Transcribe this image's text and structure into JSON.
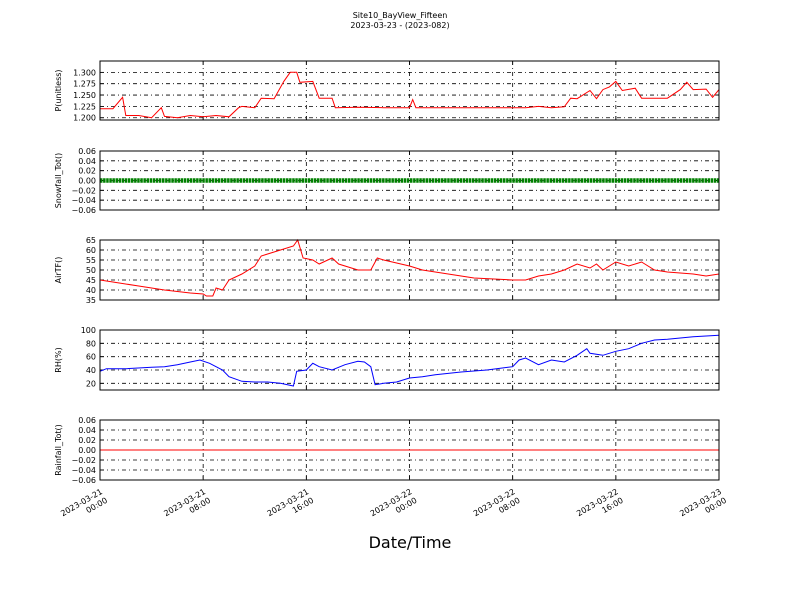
{
  "figure": {
    "title": "Site10_BayView_Fifteen",
    "subtitle": "2023-03-23 - (2023-082)",
    "xlabel": "Date/Time"
  },
  "colors": {
    "red": "#ff0000",
    "green": "#008000",
    "blue": "#0000ff"
  },
  "chart_data": [
    {
      "type": "line",
      "ylabel": "P(unitless)",
      "ylim": [
        1.195,
        1.325
      ],
      "yticks": [
        1.2,
        1.225,
        1.25,
        1.275,
        1.3
      ],
      "ytick_labels": [
        "1.200",
        "1.225",
        "1.250",
        "1.275",
        "1.300"
      ],
      "xlim": [
        "2023-03-21 00:00",
        "2023-03-23 00:00"
      ],
      "grid": true,
      "series": [
        {
          "color": "#ff0000",
          "marker": "none",
          "points": [
            [
              "2023-03-21 00:00",
              1.22
            ],
            [
              "2023-03-21 01:00",
              1.22
            ],
            [
              "2023-03-21 01:45",
              1.245
            ],
            [
              "2023-03-21 02:00",
              1.205
            ],
            [
              "2023-03-21 03:00",
              1.205
            ],
            [
              "2023-03-21 04:00",
              1.2
            ],
            [
              "2023-03-21 04:45",
              1.222
            ],
            [
              "2023-03-21 05:00",
              1.203
            ],
            [
              "2023-03-21 06:00",
              1.2
            ],
            [
              "2023-03-21 07:00",
              1.205
            ],
            [
              "2023-03-21 08:00",
              1.202
            ],
            [
              "2023-03-21 09:00",
              1.205
            ],
            [
              "2023-03-21 10:00",
              1.202
            ],
            [
              "2023-03-21 10:45",
              1.222
            ],
            [
              "2023-03-21 11:00",
              1.225
            ],
            [
              "2023-03-21 12:00",
              1.222
            ],
            [
              "2023-03-21 12:30",
              1.243
            ],
            [
              "2023-03-21 13:30",
              1.242
            ],
            [
              "2023-03-21 14:15",
              1.28
            ],
            [
              "2023-03-21 14:45",
              1.3
            ],
            [
              "2023-03-21 15:15",
              1.3
            ],
            [
              "2023-03-21 15:30",
              1.278
            ],
            [
              "2023-03-21 16:30",
              1.28
            ],
            [
              "2023-03-21 17:00",
              1.243
            ],
            [
              "2023-03-21 18:00",
              1.243
            ],
            [
              "2023-03-21 18:15",
              1.222
            ],
            [
              "2023-03-21 20:00",
              1.223
            ],
            [
              "2023-03-21 22:00",
              1.222
            ],
            [
              "2023-03-22 00:00",
              1.222
            ],
            [
              "2023-03-22 00:15",
              1.24
            ],
            [
              "2023-03-22 00:30",
              1.222
            ],
            [
              "2023-03-22 04:00",
              1.222
            ],
            [
              "2023-03-22 08:00",
              1.222
            ],
            [
              "2023-03-22 09:00",
              1.222
            ],
            [
              "2023-03-22 10:00",
              1.225
            ],
            [
              "2023-03-22 11:00",
              1.222
            ],
            [
              "2023-03-22 12:00",
              1.224
            ],
            [
              "2023-03-22 12:30",
              1.243
            ],
            [
              "2023-03-22 13:00",
              1.242
            ],
            [
              "2023-03-22 14:00",
              1.26
            ],
            [
              "2023-03-22 14:30",
              1.242
            ],
            [
              "2023-03-22 15:00",
              1.262
            ],
            [
              "2023-03-22 15:30",
              1.268
            ],
            [
              "2023-03-22 16:00",
              1.28
            ],
            [
              "2023-03-22 16:30",
              1.26
            ],
            [
              "2023-03-22 17:30",
              1.265
            ],
            [
              "2023-03-22 18:00",
              1.243
            ],
            [
              "2023-03-22 19:00",
              1.243
            ],
            [
              "2023-03-22 20:00",
              1.243
            ],
            [
              "2023-03-22 21:00",
              1.262
            ],
            [
              "2023-03-22 21:30",
              1.278
            ],
            [
              "2023-03-22 22:00",
              1.262
            ],
            [
              "2023-03-22 23:00",
              1.263
            ],
            [
              "2023-03-22 23:30",
              1.245
            ],
            [
              "2023-03-23 00:00",
              1.262
            ]
          ]
        }
      ]
    },
    {
      "type": "line",
      "ylabel": "Snowfall_Tot()",
      "ylim": [
        -0.06,
        0.06
      ],
      "yticks": [
        -0.06,
        -0.04,
        -0.02,
        0.0,
        0.02,
        0.04,
        0.06
      ],
      "ytick_labels": [
        "−0.06",
        "−0.04",
        "−0.02",
        "0.00",
        "0.02",
        "0.04",
        "0.06"
      ],
      "xlim": [
        "2023-03-21 00:00",
        "2023-03-23 00:00"
      ],
      "grid": true,
      "series": [
        {
          "color": "#008000",
          "marker": "dot",
          "points": [
            [
              "2023-03-21 00:00",
              0.0
            ],
            [
              "2023-03-23 00:00",
              0.0
            ]
          ]
        }
      ]
    },
    {
      "type": "line",
      "ylabel": "AirTF()",
      "ylim": [
        35,
        65
      ],
      "yticks": [
        35,
        40,
        45,
        50,
        55,
        60,
        65
      ],
      "ytick_labels": [
        "35",
        "40",
        "45",
        "50",
        "55",
        "60",
        "65"
      ],
      "xlim": [
        "2023-03-21 00:00",
        "2023-03-23 00:00"
      ],
      "grid": true,
      "series": [
        {
          "color": "#ff0000",
          "marker": "none",
          "points": [
            [
              "2023-03-21 00:00",
              45
            ],
            [
              "2023-03-21 01:00",
              44
            ],
            [
              "2023-03-21 03:00",
              42
            ],
            [
              "2023-03-21 05:00",
              40
            ],
            [
              "2023-03-21 07:00",
              38.5
            ],
            [
              "2023-03-21 08:00",
              38
            ],
            [
              "2023-03-21 08:15",
              37
            ],
            [
              "2023-03-21 08:45",
              37
            ],
            [
              "2023-03-21 09:00",
              41
            ],
            [
              "2023-03-21 09:30",
              40
            ],
            [
              "2023-03-21 10:00",
              45
            ],
            [
              "2023-03-21 11:00",
              48
            ],
            [
              "2023-03-21 12:00",
              52
            ],
            [
              "2023-03-21 12:30",
              57
            ],
            [
              "2023-03-21 13:00",
              58
            ],
            [
              "2023-03-21 14:00",
              60
            ],
            [
              "2023-03-21 15:00",
              62
            ],
            [
              "2023-03-21 15:20",
              65
            ],
            [
              "2023-03-21 15:45",
              56
            ],
            [
              "2023-03-21 16:30",
              55
            ],
            [
              "2023-03-21 17:00",
              53
            ],
            [
              "2023-03-21 18:00",
              56
            ],
            [
              "2023-03-21 18:30",
              53
            ],
            [
              "2023-03-21 20:00",
              50
            ],
            [
              "2023-03-21 21:00",
              50
            ],
            [
              "2023-03-21 21:30",
              56
            ],
            [
              "2023-03-21 22:00",
              55
            ],
            [
              "2023-03-22 00:00",
              52
            ],
            [
              "2023-03-22 01:00",
              50
            ],
            [
              "2023-03-22 03:00",
              48
            ],
            [
              "2023-03-22 05:00",
              46
            ],
            [
              "2023-03-22 08:00",
              45
            ],
            [
              "2023-03-22 09:00",
              45
            ],
            [
              "2023-03-22 10:00",
              47
            ],
            [
              "2023-03-22 11:00",
              48
            ],
            [
              "2023-03-22 12:00",
              50
            ],
            [
              "2023-03-22 13:00",
              53
            ],
            [
              "2023-03-22 14:00",
              51
            ],
            [
              "2023-03-22 14:30",
              53
            ],
            [
              "2023-03-22 15:00",
              50
            ],
            [
              "2023-03-22 16:00",
              54
            ],
            [
              "2023-03-22 17:00",
              52
            ],
            [
              "2023-03-22 18:00",
              54
            ],
            [
              "2023-03-22 19:00",
              50
            ],
            [
              "2023-03-22 20:00",
              49
            ],
            [
              "2023-03-22 22:00",
              48
            ],
            [
              "2023-03-22 23:00",
              47
            ],
            [
              "2023-03-23 00:00",
              48
            ]
          ]
        }
      ]
    },
    {
      "type": "line",
      "ylabel": "RH(%)",
      "ylim": [
        10,
        100
      ],
      "yticks": [
        20,
        40,
        60,
        80,
        100
      ],
      "ytick_labels": [
        "20",
        "40",
        "60",
        "80",
        "100"
      ],
      "xlim": [
        "2023-03-21 00:00",
        "2023-03-23 00:00"
      ],
      "grid": true,
      "series": [
        {
          "color": "#0000ff",
          "marker": "none",
          "points": [
            [
              "2023-03-21 00:00",
              38
            ],
            [
              "2023-03-21 00:30",
              42
            ],
            [
              "2023-03-21 02:00",
              42
            ],
            [
              "2023-03-21 04:00",
              44
            ],
            [
              "2023-03-21 05:00",
              45
            ],
            [
              "2023-03-21 06:00",
              48
            ],
            [
              "2023-03-21 07:00",
              52
            ],
            [
              "2023-03-21 07:45",
              55
            ],
            [
              "2023-03-21 08:30",
              50
            ],
            [
              "2023-03-21 09:30",
              40
            ],
            [
              "2023-03-21 10:00",
              30
            ],
            [
              "2023-03-21 11:00",
              23
            ],
            [
              "2023-03-21 12:00",
              22
            ],
            [
              "2023-03-21 13:00",
              22
            ],
            [
              "2023-03-21 14:00",
              20
            ],
            [
              "2023-03-21 15:00",
              16
            ],
            [
              "2023-03-21 15:15",
              38
            ],
            [
              "2023-03-21 16:00",
              40
            ],
            [
              "2023-03-21 16:30",
              50
            ],
            [
              "2023-03-21 17:00",
              45
            ],
            [
              "2023-03-21 18:00",
              40
            ],
            [
              "2023-03-21 19:00",
              48
            ],
            [
              "2023-03-21 20:00",
              53
            ],
            [
              "2023-03-21 20:30",
              52
            ],
            [
              "2023-03-21 21:00",
              45
            ],
            [
              "2023-03-21 21:20",
              18
            ],
            [
              "2023-03-21 22:00",
              20
            ],
            [
              "2023-03-21 23:00",
              22
            ],
            [
              "2023-03-22 00:00",
              28
            ],
            [
              "2023-03-22 01:00",
              30
            ],
            [
              "2023-03-22 02:00",
              33
            ],
            [
              "2023-03-22 04:00",
              37
            ],
            [
              "2023-03-22 06:00",
              40
            ],
            [
              "2023-03-22 08:00",
              45
            ],
            [
              "2023-03-22 08:30",
              55
            ],
            [
              "2023-03-22 09:00",
              58
            ],
            [
              "2023-03-22 10:00",
              48
            ],
            [
              "2023-03-22 11:00",
              55
            ],
            [
              "2023-03-22 12:00",
              52
            ],
            [
              "2023-03-22 13:00",
              62
            ],
            [
              "2023-03-22 13:45",
              72
            ],
            [
              "2023-03-22 14:00",
              65
            ],
            [
              "2023-03-22 15:00",
              62
            ],
            [
              "2023-03-22 16:00",
              68
            ],
            [
              "2023-03-22 17:00",
              72
            ],
            [
              "2023-03-22 18:00",
              80
            ],
            [
              "2023-03-22 19:00",
              85
            ],
            [
              "2023-03-22 20:00",
              86
            ],
            [
              "2023-03-22 21:00",
              88
            ],
            [
              "2023-03-22 22:00",
              90
            ],
            [
              "2023-03-23 00:00",
              92
            ]
          ]
        }
      ]
    },
    {
      "type": "line",
      "ylabel": "Rainfall_Tot()",
      "ylim": [
        -0.06,
        0.06
      ],
      "yticks": [
        -0.06,
        -0.04,
        -0.02,
        0.0,
        0.02,
        0.04,
        0.06
      ],
      "ytick_labels": [
        "−0.06",
        "−0.04",
        "−0.02",
        "0.00",
        "0.02",
        "0.04",
        "0.06"
      ],
      "xlim": [
        "2023-03-21 00:00",
        "2023-03-23 00:00"
      ],
      "grid": true,
      "series": [
        {
          "color": "#ff0000",
          "marker": "none",
          "points": [
            [
              "2023-03-21 00:00",
              0.0
            ],
            [
              "2023-03-23 00:00",
              0.0
            ]
          ]
        }
      ]
    }
  ],
  "xaxis": {
    "ticks": [
      "2023-03-21 00:00",
      "2023-03-21 08:00",
      "2023-03-21 16:00",
      "2023-03-22 00:00",
      "2023-03-22 08:00",
      "2023-03-22 16:00",
      "2023-03-23 00:00"
    ],
    "tick_labels": [
      [
        "2023-03-21",
        "00:00"
      ],
      [
        "2023-03-21",
        "08:00"
      ],
      [
        "2023-03-21",
        "16:00"
      ],
      [
        "2023-03-22",
        "00:00"
      ],
      [
        "2023-03-22",
        "08:00"
      ],
      [
        "2023-03-22",
        "16:00"
      ],
      [
        "2023-03-23",
        "00:00"
      ]
    ],
    "label_rotation_deg": 30
  }
}
